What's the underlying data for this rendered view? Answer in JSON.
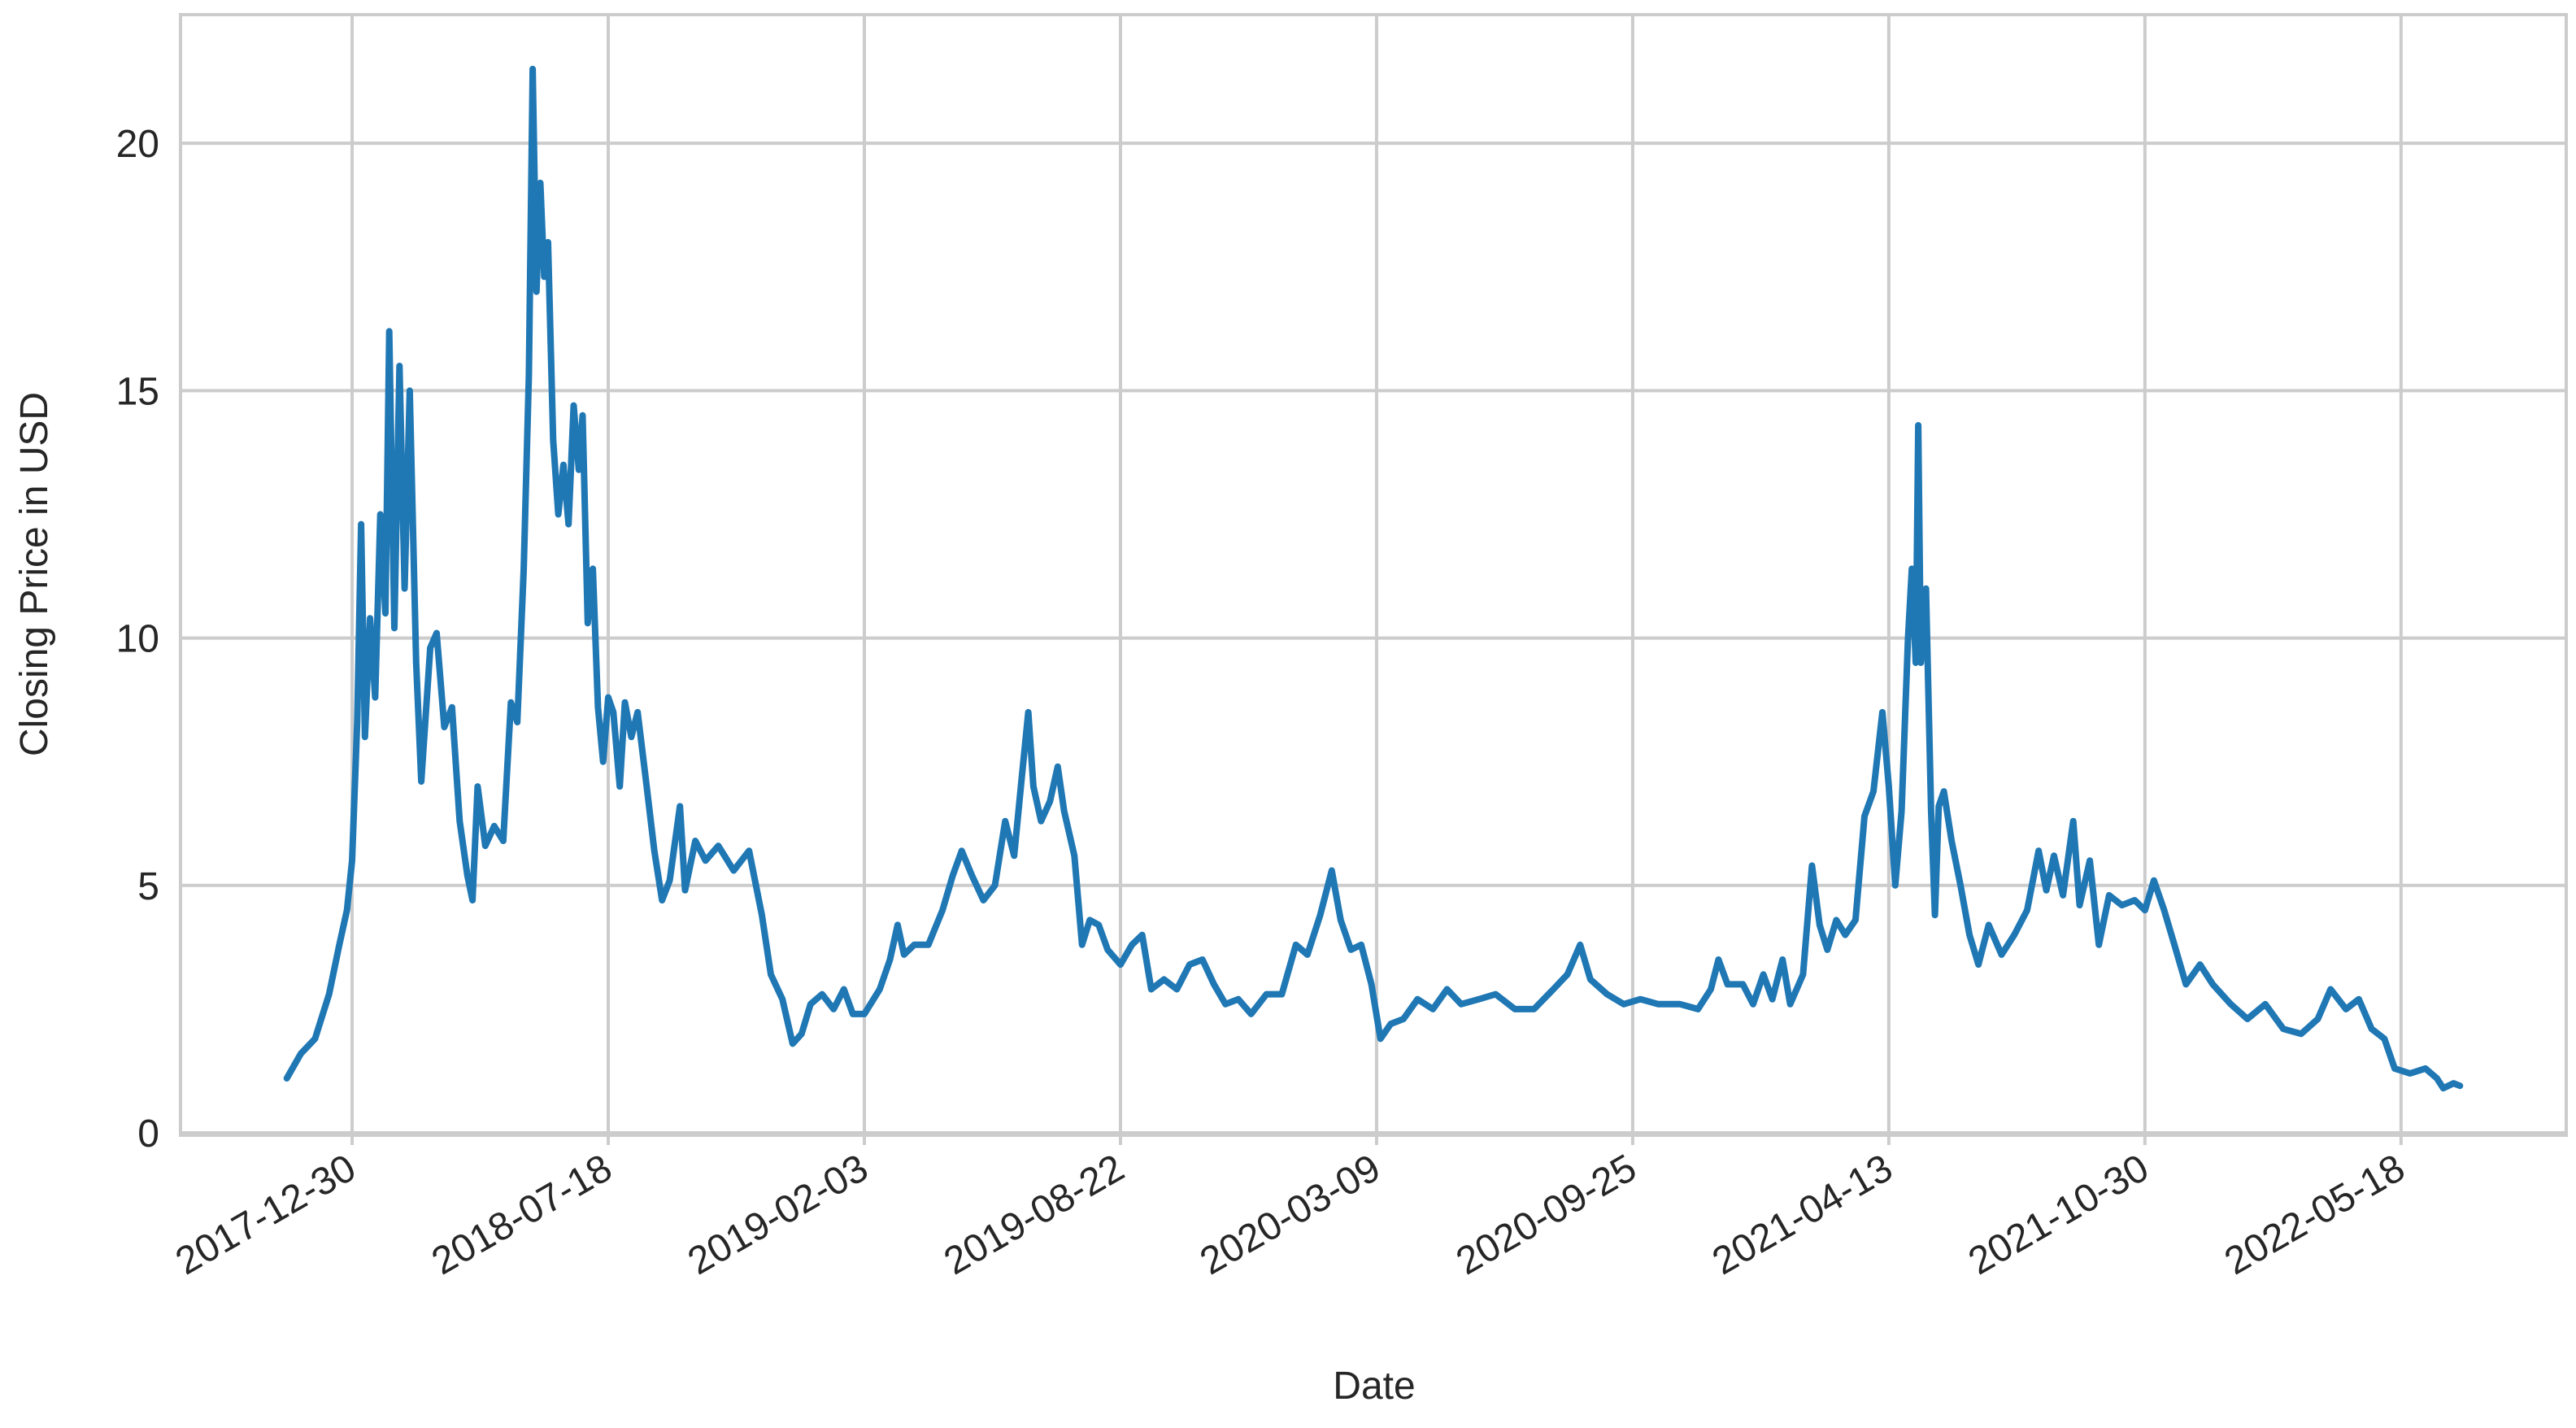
{
  "chart_data": {
    "type": "line",
    "x_label": "Date",
    "y_label": "Closing Price in USD",
    "color": "#1f77b4",
    "grid": true,
    "xlim": [
      "2017-08-18",
      "2022-09-24"
    ],
    "xticks": [
      "2017-12-30",
      "2018-07-18",
      "2019-02-03",
      "2019-08-22",
      "2020-03-09",
      "2020-09-25",
      "2021-04-13",
      "2021-10-30",
      "2022-05-18"
    ],
    "ylim": [
      -0.05,
      22.6
    ],
    "yticks": [
      0,
      5,
      10,
      15,
      20
    ],
    "x": [
      "2017-11-09",
      "2017-11-20",
      "2017-12-01",
      "2017-12-12",
      "2017-12-20",
      "2017-12-26",
      "2017-12-30",
      "2018-01-03",
      "2018-01-06",
      "2018-01-09",
      "2018-01-13",
      "2018-01-17",
      "2018-01-21",
      "2018-01-25",
      "2018-01-28",
      "2018-02-01",
      "2018-02-05",
      "2018-02-09",
      "2018-02-13",
      "2018-02-18",
      "2018-02-22",
      "2018-03-01",
      "2018-03-06",
      "2018-03-12",
      "2018-03-18",
      "2018-03-24",
      "2018-03-30",
      "2018-04-03",
      "2018-04-07",
      "2018-04-13",
      "2018-04-20",
      "2018-04-27",
      "2018-05-03",
      "2018-05-08",
      "2018-05-13",
      "2018-05-17",
      "2018-05-20",
      "2018-05-23",
      "2018-05-26",
      "2018-05-29",
      "2018-06-01",
      "2018-06-05",
      "2018-06-09",
      "2018-06-13",
      "2018-06-17",
      "2018-06-21",
      "2018-06-25",
      "2018-06-28",
      "2018-07-02",
      "2018-07-06",
      "2018-07-10",
      "2018-07-14",
      "2018-07-18",
      "2018-07-22",
      "2018-07-27",
      "2018-07-31",
      "2018-08-05",
      "2018-08-10",
      "2018-08-17",
      "2018-08-23",
      "2018-08-29",
      "2018-09-04",
      "2018-09-12",
      "2018-09-16",
      "2018-09-24",
      "2018-10-02",
      "2018-10-12",
      "2018-10-24",
      "2018-11-05",
      "2018-11-15",
      "2018-11-22",
      "2018-12-01",
      "2018-12-09",
      "2018-12-16",
      "2018-12-23",
      "2019-01-01",
      "2019-01-10",
      "2019-01-18",
      "2019-01-25",
      "2019-02-03",
      "2019-02-15",
      "2019-02-23",
      "2019-03-01",
      "2019-03-06",
      "2019-03-14",
      "2019-03-25",
      "2019-04-05",
      "2019-04-13",
      "2019-04-20",
      "2019-04-28",
      "2019-05-07",
      "2019-05-16",
      "2019-05-24",
      "2019-05-31",
      "2019-06-06",
      "2019-06-11",
      "2019-06-15",
      "2019-06-21",
      "2019-06-28",
      "2019-07-04",
      "2019-07-09",
      "2019-07-17",
      "2019-07-23",
      "2019-07-29",
      "2019-08-05",
      "2019-08-12",
      "2019-08-22",
      "2019-08-31",
      "2019-09-08",
      "2019-09-15",
      "2019-09-25",
      "2019-10-05",
      "2019-10-15",
      "2019-10-25",
      "2019-11-03",
      "2019-11-12",
      "2019-11-22",
      "2019-12-02",
      "2019-12-14",
      "2019-12-26",
      "2020-01-06",
      "2020-01-15",
      "2020-01-25",
      "2020-02-03",
      "2020-02-10",
      "2020-02-18",
      "2020-02-26",
      "2020-03-05",
      "2020-03-12",
      "2020-03-20",
      "2020-03-30",
      "2020-04-10",
      "2020-04-22",
      "2020-05-03",
      "2020-05-14",
      "2020-05-28",
      "2020-06-10",
      "2020-06-25",
      "2020-07-10",
      "2020-07-25",
      "2020-08-05",
      "2020-08-15",
      "2020-08-23",
      "2020-09-05",
      "2020-09-18",
      "2020-10-01",
      "2020-10-15",
      "2020-11-01",
      "2020-11-15",
      "2020-11-25",
      "2020-12-01",
      "2020-12-08",
      "2020-12-20",
      "2020-12-28",
      "2021-01-05",
      "2021-01-12",
      "2021-01-20",
      "2021-01-26",
      "2021-02-05",
      "2021-02-12",
      "2021-02-18",
      "2021-02-24",
      "2021-03-03",
      "2021-03-10",
      "2021-03-18",
      "2021-03-25",
      "2021-04-01",
      "2021-04-08",
      "2021-04-13",
      "2021-04-18",
      "2021-04-23",
      "2021-04-28",
      "2021-05-01",
      "2021-05-04",
      "2021-05-06",
      "2021-05-08",
      "2021-05-12",
      "2021-05-16",
      "2021-05-19",
      "2021-05-22",
      "2021-05-26",
      "2021-06-01",
      "2021-06-08",
      "2021-06-15",
      "2021-06-22",
      "2021-06-30",
      "2021-07-10",
      "2021-07-20",
      "2021-07-30",
      "2021-08-08",
      "2021-08-14",
      "2021-08-20",
      "2021-08-27",
      "2021-09-04",
      "2021-09-09",
      "2021-09-17",
      "2021-09-24",
      "2021-10-02",
      "2021-10-12",
      "2021-10-22",
      "2021-10-30",
      "2021-11-06",
      "2021-11-14",
      "2021-11-22",
      "2021-12-01",
      "2021-12-12",
      "2021-12-22",
      "2022-01-05",
      "2022-01-18",
      "2022-02-01",
      "2022-02-15",
      "2022-03-01",
      "2022-03-14",
      "2022-03-24",
      "2022-04-05",
      "2022-04-15",
      "2022-04-25",
      "2022-05-05",
      "2022-05-13",
      "2022-05-25",
      "2022-06-06",
      "2022-06-15",
      "2022-06-20",
      "2022-06-28",
      "2022-07-03"
    ],
    "values": [
      1.1,
      1.6,
      1.9,
      2.8,
      3.8,
      4.5,
      5.5,
      8.3,
      12.3,
      8.0,
      10.4,
      8.8,
      12.5,
      10.5,
      16.2,
      10.2,
      15.5,
      11.0,
      15.0,
      9.5,
      7.1,
      9.8,
      10.1,
      8.2,
      8.6,
      6.3,
      5.2,
      4.7,
      7.0,
      5.8,
      6.2,
      5.9,
      8.7,
      8.3,
      11.4,
      15.3,
      21.5,
      17.0,
      19.2,
      17.3,
      18.0,
      14.0,
      12.5,
      13.5,
      12.3,
      14.7,
      13.4,
      14.5,
      10.3,
      11.4,
      8.6,
      7.5,
      8.8,
      8.5,
      7.0,
      8.7,
      8.0,
      8.5,
      7.0,
      5.7,
      4.7,
      5.1,
      6.6,
      4.9,
      5.9,
      5.5,
      5.8,
      5.3,
      5.7,
      4.4,
      3.2,
      2.7,
      1.8,
      2.0,
      2.6,
      2.8,
      2.5,
      2.9,
      2.4,
      2.4,
      2.9,
      3.5,
      4.2,
      3.6,
      3.8,
      3.8,
      4.5,
      5.2,
      5.7,
      5.2,
      4.7,
      5.0,
      6.3,
      5.6,
      7.2,
      8.5,
      7.0,
      6.3,
      6.7,
      7.4,
      6.5,
      5.6,
      3.8,
      4.3,
      4.2,
      3.7,
      3.4,
      3.8,
      4.0,
      2.9,
      3.1,
      2.9,
      3.4,
      3.5,
      3.0,
      2.6,
      2.7,
      2.4,
      2.8,
      2.8,
      3.8,
      3.6,
      4.4,
      5.3,
      4.3,
      3.7,
      3.8,
      3.0,
      1.9,
      2.2,
      2.3,
      2.7,
      2.5,
      2.9,
      2.6,
      2.7,
      2.8,
      2.5,
      2.5,
      2.9,
      3.2,
      3.8,
      3.1,
      2.8,
      2.6,
      2.7,
      2.6,
      2.6,
      2.5,
      2.9,
      3.5,
      3.0,
      3.0,
      2.6,
      3.2,
      2.7,
      3.5,
      2.6,
      3.2,
      5.4,
      4.2,
      3.7,
      4.3,
      4.0,
      4.3,
      6.4,
      6.9,
      8.5,
      7.0,
      5.0,
      6.5,
      10.0,
      11.4,
      9.5,
      14.3,
      9.5,
      11.0,
      6.5,
      4.4,
      6.6,
      6.9,
      5.9,
      5.0,
      4.0,
      3.4,
      4.2,
      3.6,
      4.0,
      4.5,
      5.7,
      4.9,
      5.6,
      4.8,
      6.3,
      4.6,
      5.5,
      3.8,
      4.8,
      4.6,
      4.7,
      4.5,
      5.1,
      4.5,
      3.8,
      3.0,
      3.4,
      3.0,
      2.6,
      2.3,
      2.6,
      2.1,
      2.0,
      2.3,
      2.9,
      2.5,
      2.7,
      2.1,
      1.9,
      1.3,
      1.2,
      1.3,
      1.1,
      0.9,
      1.0,
      0.95
    ]
  }
}
